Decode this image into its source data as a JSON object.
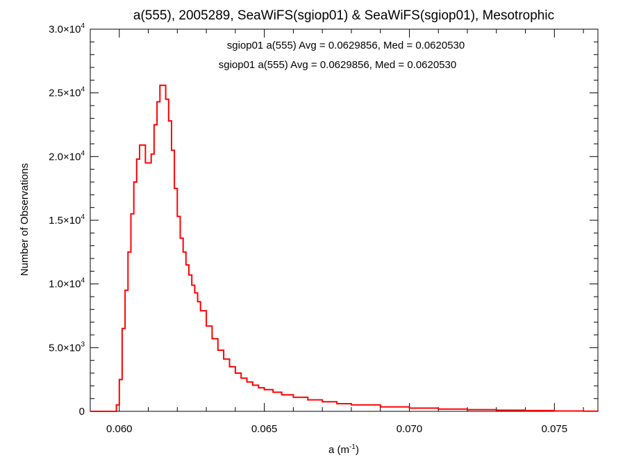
{
  "chart_data": {
    "type": "line",
    "step": true,
    "title": "a(555), 2005289, SeaWiFS(sgiop01) & SeaWiFS(sgiop01), Mesotrophic",
    "xlabel_base": "a (m",
    "xlabel_exp": "-1",
    "xlabel_close": ")",
    "ylabel": "Number of Observations",
    "xlim": [
      0.059,
      0.0765
    ],
    "ylim": [
      0,
      30000
    ],
    "x_ticks": [
      {
        "value": 0.06,
        "label": "0.060"
      },
      {
        "value": 0.065,
        "label": "0.065"
      },
      {
        "value": 0.07,
        "label": "0.070"
      },
      {
        "value": 0.075,
        "label": "0.075"
      }
    ],
    "y_ticks": [
      {
        "value": 0,
        "mant": "0",
        "exp": ""
      },
      {
        "value": 5000,
        "mant": "5.0×10",
        "exp": "3"
      },
      {
        "value": 10000,
        "mant": "1.0×10",
        "exp": "4"
      },
      {
        "value": 15000,
        "mant": "1.5×10",
        "exp": "4"
      },
      {
        "value": 20000,
        "mant": "2.0×10",
        "exp": "4"
      },
      {
        "value": 25000,
        "mant": "2.5×10",
        "exp": "4"
      },
      {
        "value": 30000,
        "mant": "3.0×10",
        "exp": "4"
      }
    ],
    "annotations": [
      {
        "text": "sgiop01 a(555) Avg = 0.0629856, Med = 0.0620530",
        "color": "#000000"
      },
      {
        "text": "sgiop01 a(555) Avg = 0.0629856, Med = 0.0620530",
        "color": "#ff0000"
      }
    ],
    "series": [
      {
        "color": "#ff0000",
        "x": [
          0.059,
          0.0598,
          0.0599,
          0.06,
          0.0601,
          0.0602,
          0.0603,
          0.0604,
          0.0605,
          0.0606,
          0.0607,
          0.0608,
          0.0609,
          0.061,
          0.0611,
          0.0612,
          0.0613,
          0.0614,
          0.0615,
          0.0616,
          0.0617,
          0.0618,
          0.0619,
          0.062,
          0.0621,
          0.0622,
          0.0623,
          0.0624,
          0.0625,
          0.0626,
          0.0627,
          0.0628,
          0.063,
          0.0632,
          0.0634,
          0.0636,
          0.0638,
          0.064,
          0.0642,
          0.0644,
          0.0646,
          0.0648,
          0.065,
          0.0653,
          0.0656,
          0.066,
          0.0665,
          0.067,
          0.0675,
          0.068,
          0.069,
          0.07,
          0.071,
          0.072,
          0.073,
          0.074,
          0.075,
          0.076,
          0.0765
        ],
        "y": [
          0,
          0,
          500,
          2500,
          6500,
          9500,
          12500,
          15500,
          18000,
          19800,
          20900,
          20900,
          19500,
          19500,
          20200,
          22500,
          24300,
          25600,
          25600,
          24500,
          22800,
          20500,
          17500,
          15300,
          13600,
          12500,
          11500,
          10700,
          9900,
          9300,
          8600,
          7900,
          6700,
          5700,
          4800,
          4100,
          3500,
          3000,
          2600,
          2300,
          2050,
          1850,
          1700,
          1500,
          1300,
          1100,
          900,
          750,
          600,
          500,
          350,
          250,
          180,
          130,
          90,
          60,
          30,
          10,
          0
        ]
      }
    ]
  }
}
